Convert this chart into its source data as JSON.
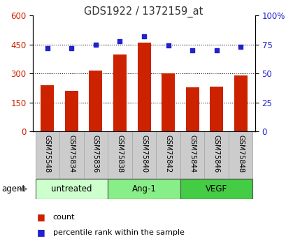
{
  "title": "GDS1922 / 1372159_at",
  "categories": [
    "GSM75548",
    "GSM75834",
    "GSM75836",
    "GSM75838",
    "GSM75840",
    "GSM75842",
    "GSM75844",
    "GSM75846",
    "GSM75848"
  ],
  "bar_values": [
    240,
    210,
    315,
    400,
    460,
    300,
    228,
    233,
    290
  ],
  "dot_values": [
    72,
    72,
    75,
    78,
    82,
    74,
    70,
    70,
    73
  ],
  "bar_color": "#cc2200",
  "dot_color": "#2222cc",
  "left_ylim": [
    0,
    600
  ],
  "right_ylim": [
    0,
    100
  ],
  "left_yticks": [
    0,
    150,
    300,
    450,
    600
  ],
  "right_yticks": [
    0,
    25,
    50,
    75,
    100
  ],
  "right_yticklabels": [
    "0",
    "25",
    "50",
    "75",
    "100%"
  ],
  "grid_values": [
    150,
    300,
    450
  ],
  "groups": [
    {
      "label": "untreated",
      "indices": [
        0,
        1,
        2
      ],
      "color": "#ccffcc"
    },
    {
      "label": "Ang-1",
      "indices": [
        3,
        4,
        5
      ],
      "color": "#88ee88"
    },
    {
      "label": "VEGF",
      "indices": [
        6,
        7,
        8
      ],
      "color": "#44cc44"
    }
  ],
  "agent_label": "agent",
  "legend_bar_label": "count",
  "legend_dot_label": "percentile rank within the sample",
  "tick_label_color_left": "#cc2200",
  "tick_label_color_right": "#2222cc",
  "title_color": "#333333",
  "cell_color": "#cccccc",
  "cell_edge_color": "#aaaaaa"
}
